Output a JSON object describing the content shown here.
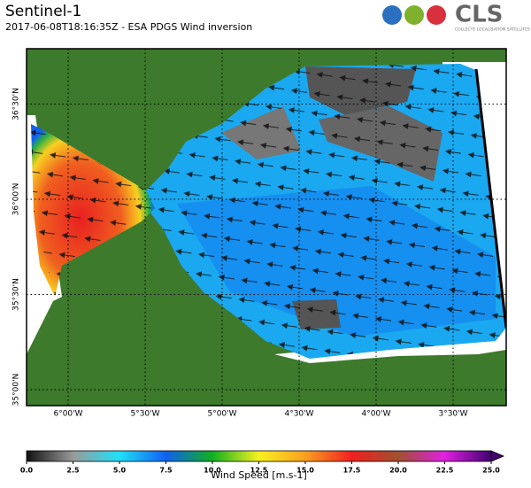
{
  "header": {
    "title": "Sentinel-1",
    "subtitle": "2017-06-08T18:16:35Z - ESA PDGS Wind inversion"
  },
  "logo": {
    "name": "CLS",
    "tagline": "COLLECTE LOCALISATION SATELLITES"
  },
  "map": {
    "lon_ticks": [
      {
        "value": -6,
        "label": "6°00'W"
      },
      {
        "value": -5.5,
        "label": "5°30'W"
      },
      {
        "value": -5,
        "label": "5°00'W"
      },
      {
        "value": -4.5,
        "label": "4°30'W"
      },
      {
        "value": -4,
        "label": "4°00'W"
      },
      {
        "value": -3.5,
        "label": "3°30'W"
      }
    ],
    "lat_ticks": [
      {
        "value": 36.5,
        "label": "36°30'N"
      },
      {
        "value": 36,
        "label": "36°00'N"
      },
      {
        "value": 35.5,
        "label": "35°30'N"
      },
      {
        "value": 35,
        "label": "35°00'N"
      }
    ]
  },
  "colorbar": {
    "label": "Wind Speed [m.s-1]",
    "range": [
      0,
      25
    ],
    "ticks": [
      {
        "value": 0,
        "label": "0.0"
      },
      {
        "value": 2.5,
        "label": "2.5"
      },
      {
        "value": 5,
        "label": "5.0"
      },
      {
        "value": 7.5,
        "label": "7.5"
      },
      {
        "value": 10,
        "label": "10.0"
      },
      {
        "value": 12.5,
        "label": "12.5"
      },
      {
        "value": 15,
        "label": "15.0"
      },
      {
        "value": 17.5,
        "label": "17.5"
      },
      {
        "value": 20,
        "label": "20.0"
      },
      {
        "value": 22.5,
        "label": "22.5"
      },
      {
        "value": 25,
        "label": "25.0"
      }
    ],
    "colors": [
      "#111111",
      "#9a9a9a",
      "#20e0f8",
      "#1060f0",
      "#10b020",
      "#f8f020",
      "#f8a020",
      "#f02020",
      "#a05030",
      "#e020e0",
      "#400070"
    ]
  }
}
